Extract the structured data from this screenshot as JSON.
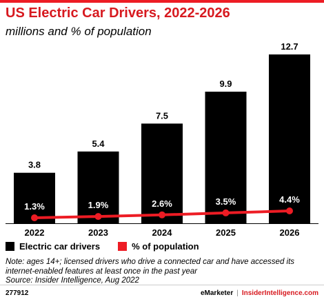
{
  "header": {
    "title": "US Electric Car Drivers, 2022-2026",
    "subtitle": "millions and % of population"
  },
  "chart_data": {
    "type": "bar",
    "categories": [
      "2022",
      "2023",
      "2024",
      "2025",
      "2026"
    ],
    "series": [
      {
        "name": "Electric car drivers",
        "type": "bar",
        "values": [
          3.8,
          5.4,
          7.5,
          9.9,
          12.7
        ],
        "labels": [
          "3.8",
          "5.4",
          "7.5",
          "9.9",
          "12.7"
        ],
        "color": "#000000"
      },
      {
        "name": "% of population",
        "type": "line",
        "values": [
          1.3,
          1.9,
          2.6,
          3.5,
          4.4
        ],
        "labels": [
          "1.3%",
          "1.9%",
          "2.6%",
          "3.5%",
          "4.4%"
        ],
        "color": "#ed1c24"
      }
    ],
    "title": "US Electric Car Drivers, 2022-2026",
    "subtitle": "millions and % of population",
    "ylim": [
      0,
      12.7
    ],
    "grid": false,
    "legend_position": "bottom-left"
  },
  "legend": {
    "items": [
      {
        "label": "Electric car drivers",
        "color": "#000000"
      },
      {
        "label": "% of population",
        "color": "#ed1c24"
      }
    ]
  },
  "note": {
    "text": "Note: ages 14+; licensed drivers who drive a connected car and have accessed its internet-enabled features at least once in the past year",
    "source": "Source: Insider Intelligence, Aug 2022"
  },
  "footer": {
    "id": "277912",
    "brand_left": "eMarketer",
    "separator": "|",
    "brand_right": "InsiderIntelligence.com"
  },
  "colors": {
    "accent": "#ed1c24",
    "bar": "#000000",
    "brand": "#d7191f"
  }
}
